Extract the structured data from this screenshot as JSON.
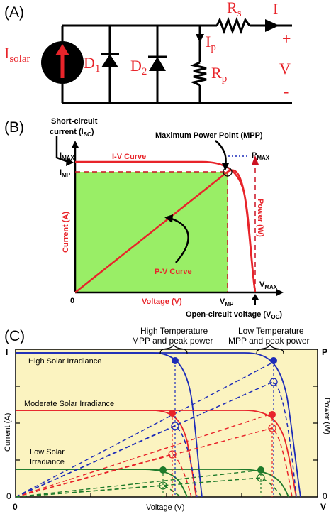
{
  "panel_a": {
    "label": "(A)",
    "source": "I",
    "source_sub": "solar",
    "d1": "D",
    "d1_sub": "1",
    "d2": "D",
    "d2_sub": "2",
    "ip": "I",
    "ip_sub": "p",
    "rp": "R",
    "rp_sub": "p",
    "rs": "R",
    "rs_sub": "s",
    "current": "I",
    "plus": "+",
    "voltage": "V",
    "minus": "-"
  },
  "panel_b": {
    "label": "(B)",
    "isc_line1": "Short-circuit",
    "isc_line2": "current (I",
    "isc_sub": "SC",
    "isc_close": ")",
    "imax": "I",
    "imax_sub": "MAX",
    "imp": "I",
    "imp_sub": "MP",
    "iv_curve": "I-V Curve",
    "mpp": "Maximum Power Point (MPP)",
    "pmax": "P",
    "pmax_sub": "MAX",
    "current_axis": "Current (A)",
    "power_axis": "Power (W)",
    "pv_curve": "P-V Curve",
    "voltage_axis": "Voltage (V)",
    "zero": "0",
    "vmp": "V",
    "vmp_sub": "MP",
    "vmax": "V",
    "vmax_sub": "MAX",
    "voc_label": "Open-circuit voltage (V",
    "voc_sub": "OC",
    "voc_close": ")",
    "colors": {
      "green_area": "#99ee66",
      "red": "#e8242a",
      "dark_red": "#cc1122"
    }
  },
  "panel_c": {
    "label": "(C)",
    "high_temp_line1": "High Temperature",
    "high_temp_line2": "MPP and peak power",
    "low_temp_line1": "Low Temperature",
    "low_temp_line2": "MPP and peak power",
    "i_axis_top": "I",
    "p_axis_top": "P",
    "v_axis_end": "V",
    "zero_left": "0",
    "zero_right": "0",
    "zero_bottom": "0",
    "current_axis": "Current (A)",
    "power_axis": "Power (W)",
    "voltage_axis": "Voltage (V)",
    "high_irr": "High Solar Irradiance",
    "mod_irr": "Moderate Solar Irradiance",
    "low_irr_line1": "Low Solar",
    "low_irr_line2": "Irradiance",
    "colors": {
      "background": "#fbf3c0",
      "blue": "#1c2bb8",
      "red": "#e8242a",
      "green": "#1e7a2a"
    }
  }
}
